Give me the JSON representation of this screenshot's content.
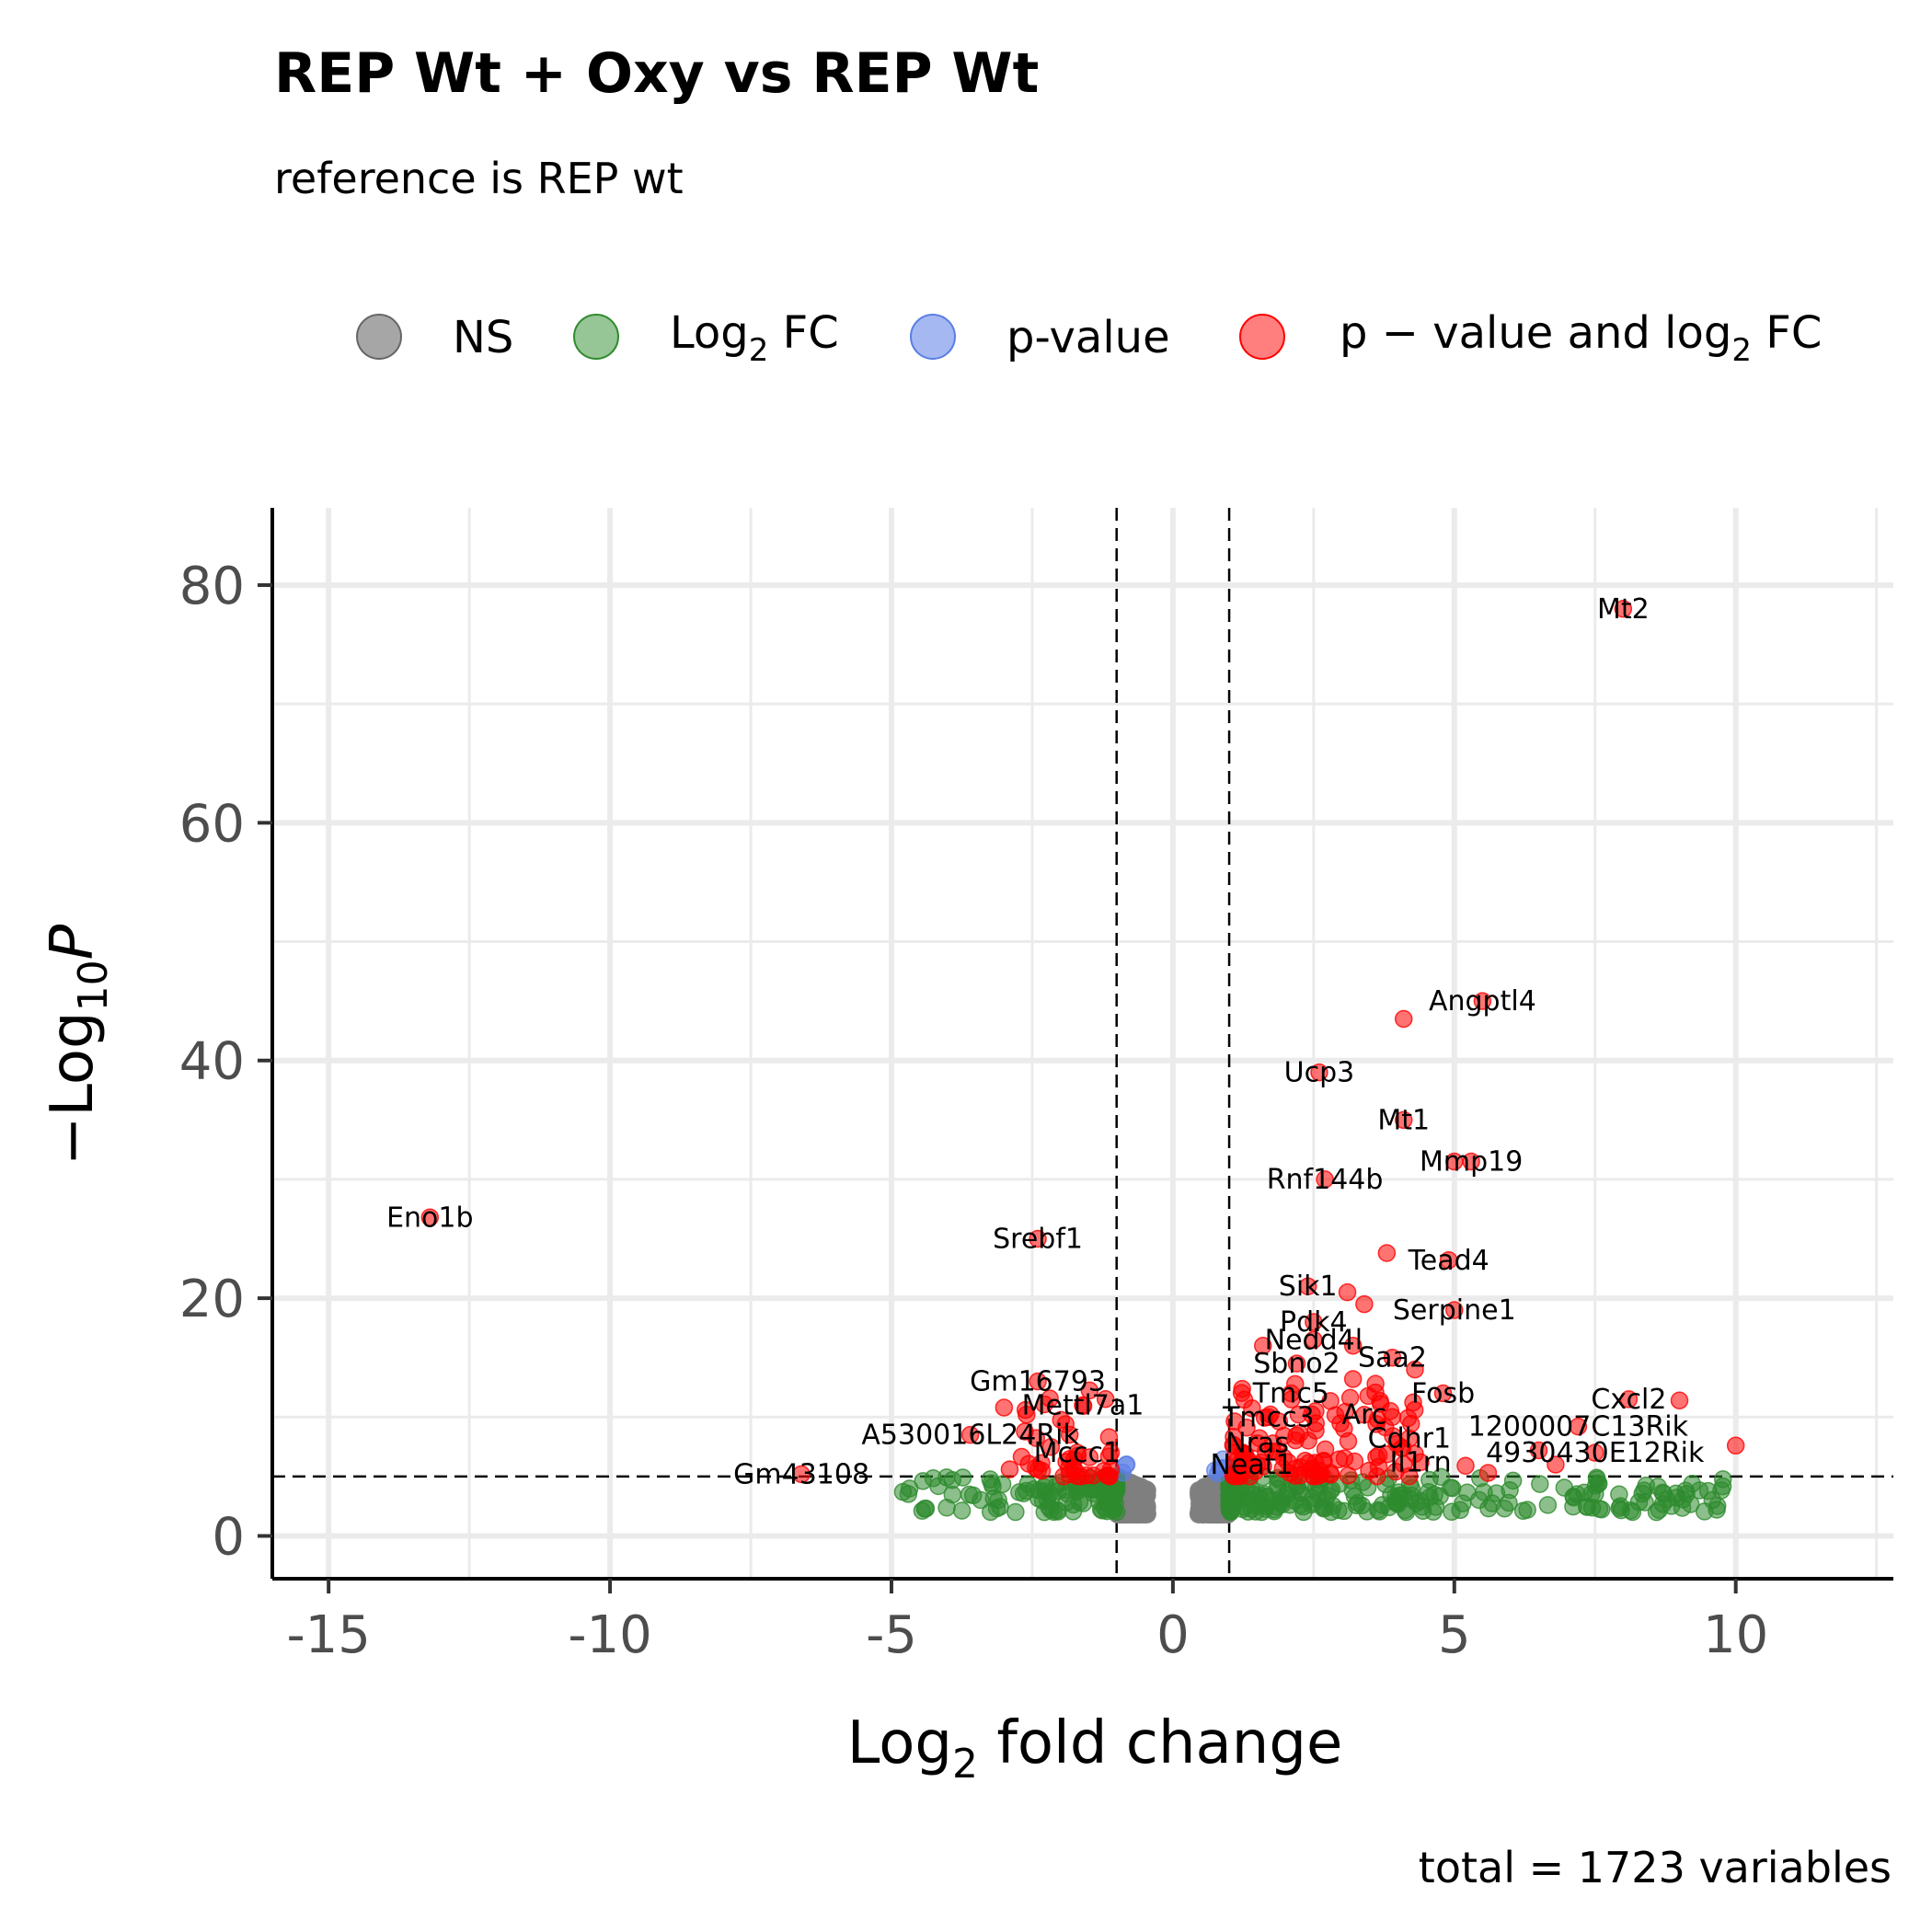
{
  "chart_data": {
    "type": "scatter",
    "title": "REP Wt + Oxy vs REP Wt",
    "subtitle": "reference is REP wt",
    "caption": "total = 1723 variables",
    "xlabel": {
      "main": "Log",
      "sub": "2",
      "rest": " fold change"
    },
    "ylabel": {
      "prefix": "−Log",
      "sub": "10",
      "italic": "P"
    },
    "xlim": [
      -16,
      12.8
    ],
    "ylim": [
      -3.6,
      86.5
    ],
    "x_ticks": [
      {
        "value": -15,
        "label": "-15"
      },
      {
        "value": -10,
        "label": "-10"
      },
      {
        "value": -5,
        "label": "-5"
      },
      {
        "value": 0,
        "label": "0"
      },
      {
        "value": 5,
        "label": "5"
      },
      {
        "value": 10,
        "label": "10"
      }
    ],
    "y_ticks": [
      {
        "value": 0,
        "label": "0"
      },
      {
        "value": 20,
        "label": "20"
      },
      {
        "value": 40,
        "label": "40"
      },
      {
        "value": 60,
        "label": "60"
      },
      {
        "value": 80,
        "label": "80"
      }
    ],
    "fc_cutoff": 1,
    "p_cutoff_neglog10": 5,
    "grid": true,
    "legend_position": "top",
    "legend": [
      {
        "key": "ns",
        "label": "NS",
        "color": "#808080"
      },
      {
        "key": "fc",
        "label": "Log",
        "sub": "2",
        "rest": " FC",
        "color": "#2e8b2e"
      },
      {
        "key": "p",
        "label": "p-value",
        "color": "#5b7ee5"
      },
      {
        "key": "both",
        "label": "p − value and log",
        "sub": "2",
        "rest": " FC",
        "color": "#ff0000"
      }
    ],
    "labeled_points": [
      {
        "gene": "Mt2",
        "x": 8.0,
        "y": 78.0
      },
      {
        "gene": "Angptl4",
        "x": 5.5,
        "y": 45.0
      },
      {
        "gene": "",
        "x": 4.1,
        "y": 43.5
      },
      {
        "gene": "Ucp3",
        "x": 2.6,
        "y": 39.0
      },
      {
        "gene": "Mt1",
        "x": 4.1,
        "y": 35.0
      },
      {
        "gene": "Mmp19",
        "x": 5.3,
        "y": 31.5
      },
      {
        "gene": "",
        "x": 5.0,
        "y": 31.5
      },
      {
        "gene": "Rnf144b",
        "x": 2.7,
        "y": 30.0
      },
      {
        "gene": "Eno1b",
        "x": -13.2,
        "y": 26.8
      },
      {
        "gene": "Srebf1",
        "x": -2.4,
        "y": 25.0
      },
      {
        "gene": "Tead4",
        "x": 4.9,
        "y": 23.2
      },
      {
        "gene": "",
        "x": 3.8,
        "y": 23.8
      },
      {
        "gene": "Sik1",
        "x": 2.4,
        "y": 21.0
      },
      {
        "gene": "",
        "x": 3.1,
        "y": 20.5
      },
      {
        "gene": "",
        "x": 3.4,
        "y": 19.5
      },
      {
        "gene": "Serpine1",
        "x": 5.0,
        "y": 19.0
      },
      {
        "gene": "Pdk4",
        "x": 2.5,
        "y": 18.0
      },
      {
        "gene": "Nedd4l",
        "x": 2.5,
        "y": 16.5
      },
      {
        "gene": "",
        "x": 3.2,
        "y": 16.0
      },
      {
        "gene": "",
        "x": 1.6,
        "y": 16.0
      },
      {
        "gene": "Saa2",
        "x": 3.9,
        "y": 15.0
      },
      {
        "gene": "",
        "x": 4.3,
        "y": 14.0
      },
      {
        "gene": "Sbno2",
        "x": 2.2,
        "y": 14.5
      },
      {
        "gene": "",
        "x": 3.2,
        "y": 13.2
      },
      {
        "gene": "",
        "x": 3.6,
        "y": 12.8
      },
      {
        "gene": "Gm16793",
        "x": -2.4,
        "y": 13.0
      },
      {
        "gene": "Tmc5",
        "x": 2.1,
        "y": 12.0
      },
      {
        "gene": "Fosb",
        "x": 4.8,
        "y": 12.0
      },
      {
        "gene": "Cxcl2",
        "x": 8.1,
        "y": 11.5
      },
      {
        "gene": "",
        "x": 9.0,
        "y": 11.4
      },
      {
        "gene": "Mettl7a1",
        "x": -1.6,
        "y": 11.0
      },
      {
        "gene": "",
        "x": -3.0,
        "y": 10.8
      },
      {
        "gene": "",
        "x": -2.6,
        "y": 10.2
      },
      {
        "gene": "Arc",
        "x": 3.4,
        "y": 10.2
      },
      {
        "gene": "Tmcc3",
        "x": 1.7,
        "y": 10.0
      },
      {
        "gene": "1200007C13Rik",
        "x": 7.2,
        "y": 9.2
      },
      {
        "gene": "A530016L24Rik",
        "x": -3.6,
        "y": 8.5
      },
      {
        "gene": "Cdhr1",
        "x": 4.2,
        "y": 8.2
      },
      {
        "gene": "Nras",
        "x": 1.5,
        "y": 7.8
      },
      {
        "gene": "",
        "x": 10.0,
        "y": 7.6
      },
      {
        "gene": "4930430E12Rik",
        "x": 7.5,
        "y": 7.0
      },
      {
        "gene": "",
        "x": 6.5,
        "y": 7.2
      },
      {
        "gene": "Mccc1",
        "x": -1.7,
        "y": 7.0
      },
      {
        "gene": "Il1rn",
        "x": 4.4,
        "y": 6.2
      },
      {
        "gene": "",
        "x": 5.2,
        "y": 5.9
      },
      {
        "gene": "",
        "x": 5.6,
        "y": 5.3
      },
      {
        "gene": "",
        "x": 6.8,
        "y": 6.0
      },
      {
        "gene": "Neat1",
        "x": 1.4,
        "y": 6.0
      },
      {
        "gene": "",
        "x": -2.9,
        "y": 5.6
      },
      {
        "gene": "Gm43108",
        "x": -6.6,
        "y": 5.2
      }
    ],
    "label_offsets_note": "",
    "point_groups": [
      {
        "key": "ns",
        "x_range": [
          -1.0,
          1.0
        ],
        "y_range": [
          1.8,
          5.0
        ],
        "count": 1200
      },
      {
        "key": "fc",
        "x_range": [
          -4.8,
          9.8
        ],
        "y_range": [
          2.0,
          5.0
        ],
        "count": 360
      },
      {
        "key": "p",
        "x_range": [
          -1.0,
          1.0
        ],
        "y_range": [
          5.0,
          6.5
        ],
        "count": 8
      },
      {
        "key": "both",
        "x_range": [
          -3.0,
          4.5
        ],
        "y_range": [
          5.0,
          13.0
        ],
        "count": 150
      }
    ]
  }
}
